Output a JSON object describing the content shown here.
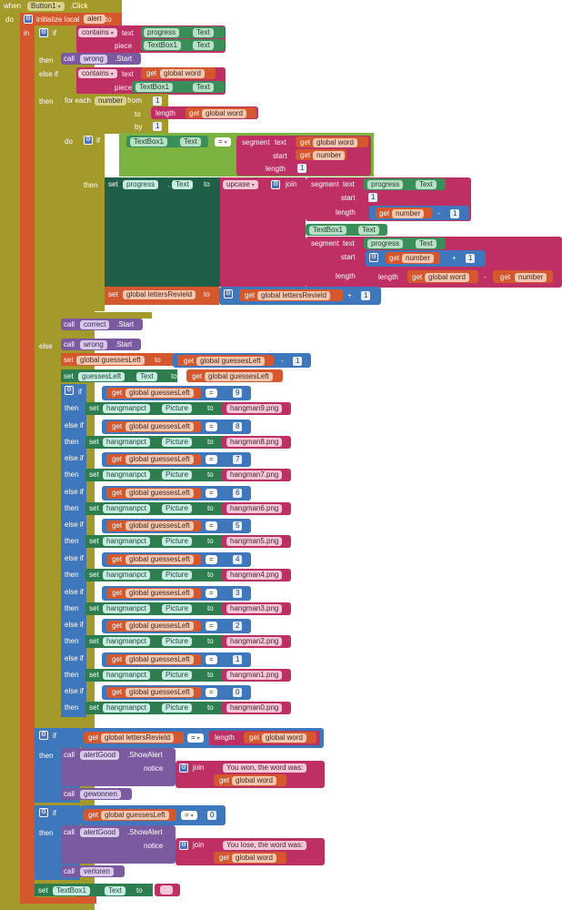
{
  "event": {
    "when": "when",
    "component": "Button1",
    "event_name": ".Click",
    "do": "do"
  },
  "local": {
    "label": "initialize local",
    "name": "alert",
    "to": "to",
    "in": "in"
  },
  "kw": {
    "if": "if",
    "then": "then",
    "else": "else",
    "else_if": "else if",
    "for_each": "for each",
    "from": "from",
    "to": "to",
    "by": "by",
    "do": "do",
    "set": "set",
    "get": "get",
    "call": "call",
    "join": "join",
    "length": "length",
    "segment": "segment",
    "text": "text",
    "start": "start",
    "piece": "piece",
    "contains": "contains",
    "upcase": "upcase",
    "notice": "notice",
    "eq": "=",
    "plus": "+",
    "minus": "-",
    "dot": "."
  },
  "vars": {
    "global_word": "global word",
    "global_guessesLeft": "global guessesLeft",
    "global_lettersRevield": "global lettersRevield",
    "number": "number"
  },
  "components": {
    "progress": "progress",
    "TextBox1": "TextBox1",
    "wrong": "wrong",
    "correct": "correct",
    "guessesLeft": "guessesLeft",
    "hangmanpct": "hangmanpct",
    "alertGood": "alertGood",
    "gewonnen": "gewonnen",
    "verloren": "verloren"
  },
  "props": {
    "Text": "Text",
    "Picture": "Picture",
    "Start": ".Start",
    "ShowAlert": ".ShowAlert"
  },
  "numbers": {
    "one": "1",
    "zero": "0"
  },
  "hangman_rows": [
    {
      "n": "9",
      "img": "hangman9.png"
    },
    {
      "n": "8",
      "img": "hangman8.png"
    },
    {
      "n": "7",
      "img": "hangman7.png"
    },
    {
      "n": "6",
      "img": "hangman6.png"
    },
    {
      "n": "5",
      "img": "hangman5.png"
    },
    {
      "n": "4",
      "img": "hangman4.png"
    },
    {
      "n": "3",
      "img": "hangman3.png"
    },
    {
      "n": "2",
      "img": "hangman2.png"
    },
    {
      "n": "1",
      "img": "hangman1.png"
    },
    {
      "n": "0",
      "img": "hangman0.png"
    }
  ],
  "strings": {
    "won": "You won, the word was: ",
    "lose": "You lose, the word was: ",
    "empty": " "
  },
  "colors": {
    "event": "#A49A2C",
    "local": "#D5572E",
    "control": "#3E77BC",
    "set": "#2E7D4F",
    "call": "#7C5AA0",
    "text": "#BE2F63"
  }
}
